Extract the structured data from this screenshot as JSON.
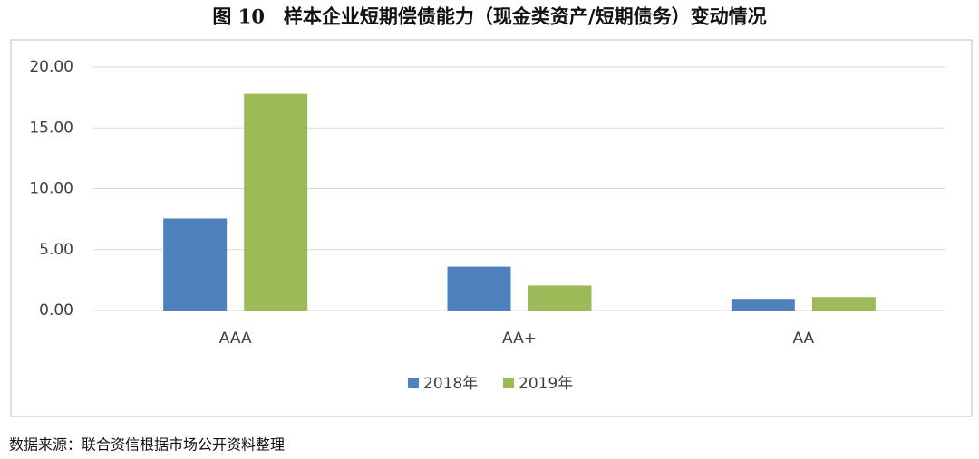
{
  "chart_data": {
    "type": "bar",
    "title": "图 10　样本企业短期偿债能力（现金类资产/短期债务）变动情况",
    "source": "数据来源：联合资信根据市场公开资料整理",
    "categories": [
      "AAA",
      "AA+",
      "AA"
    ],
    "series": [
      {
        "name": "2018年",
        "color": "#4f81bd",
        "values": [
          7.55,
          3.6,
          0.95
        ]
      },
      {
        "name": "2019年",
        "color": "#9bbb59",
        "values": [
          17.8,
          2.05,
          1.1
        ]
      }
    ],
    "ylim": [
      0,
      20
    ],
    "yticks": [
      {
        "value": 0,
        "label": "0.00"
      },
      {
        "value": 5,
        "label": "5.00"
      },
      {
        "value": 10,
        "label": "10.00"
      },
      {
        "value": 15,
        "label": "15.00"
      },
      {
        "value": 20,
        "label": "20.00"
      }
    ],
    "grid": true,
    "legend": "bottom"
  }
}
